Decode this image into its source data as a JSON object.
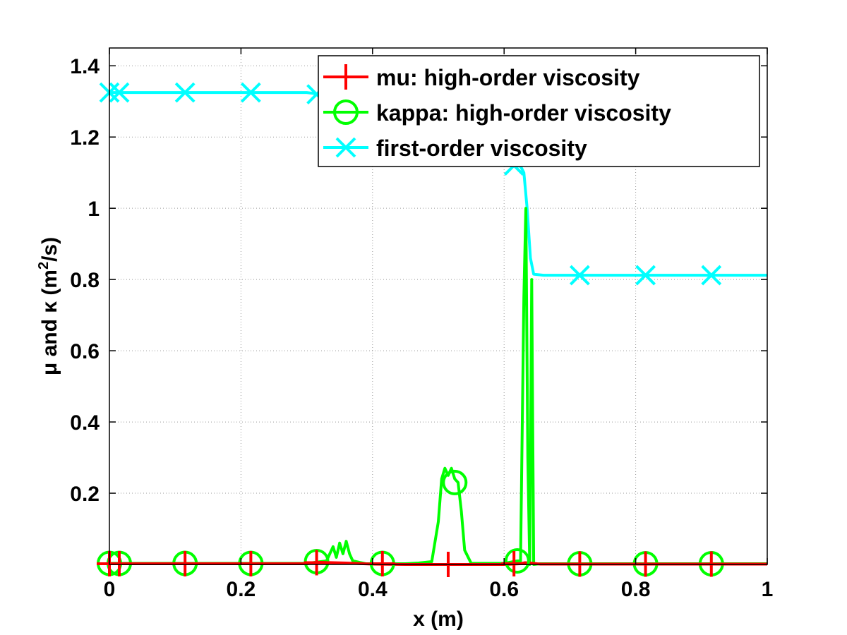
{
  "chart_data": {
    "type": "line",
    "xlabel": "x (m)",
    "ylabel_parts": [
      "μ and κ (m",
      "2",
      "/s)"
    ],
    "xlim": [
      0,
      1
    ],
    "ylim": [
      0,
      1.45
    ],
    "x_ticks": [
      0,
      0.2,
      0.4,
      0.6,
      0.8,
      1
    ],
    "x_tick_labels": [
      "0",
      "0.2",
      "0.4",
      "0.6",
      "0.8",
      "1"
    ],
    "y_ticks": [
      0.2,
      0.4,
      0.6,
      0.8,
      1,
      1.2,
      1.4
    ],
    "y_tick_labels": [
      "0.2",
      "0.4",
      "0.6",
      "0.8",
      "1",
      "1.2",
      "1.4"
    ],
    "grid": true,
    "legend_position": "top-right",
    "series": [
      {
        "name": "mu: high-order viscosity",
        "color": "#ff0000",
        "marker": "plus",
        "points": [
          [
            0,
            0.002
          ],
          [
            0.3,
            0.002
          ],
          [
            0.32,
            0.006
          ],
          [
            0.36,
            0.004
          ],
          [
            0.4,
            0.001
          ],
          [
            0.45,
            0.0
          ],
          [
            0.5,
            0.0
          ],
          [
            0.55,
            0.0
          ],
          [
            0.6,
            0.0
          ],
          [
            0.625,
            0.002
          ],
          [
            0.632,
            0.005
          ],
          [
            0.645,
            0.003
          ],
          [
            0.655,
            0.001
          ],
          [
            1.0,
            0.001
          ]
        ],
        "marker_points": [
          [
            0.0,
            0.002
          ],
          [
            0.015,
            0.002
          ],
          [
            0.115,
            0.002
          ],
          [
            0.215,
            0.002
          ],
          [
            0.315,
            0.005
          ],
          [
            0.415,
            0.002
          ],
          [
            0.515,
            0.0
          ],
          [
            0.615,
            0.002
          ],
          [
            0.715,
            0.001
          ],
          [
            0.815,
            0.001
          ],
          [
            0.915,
            0.001
          ]
        ]
      },
      {
        "name": "kappa: high-order viscosity",
        "color": "#00ff00",
        "marker": "circle",
        "points": [
          [
            0,
            0.003
          ],
          [
            0.3,
            0.003
          ],
          [
            0.33,
            0.01
          ],
          [
            0.34,
            0.05
          ],
          [
            0.345,
            0.02
          ],
          [
            0.35,
            0.06
          ],
          [
            0.355,
            0.03
          ],
          [
            0.36,
            0.065
          ],
          [
            0.365,
            0.03
          ],
          [
            0.37,
            0.01
          ],
          [
            0.39,
            0.002
          ],
          [
            0.45,
            0.002
          ],
          [
            0.47,
            0.004
          ],
          [
            0.49,
            0.008
          ],
          [
            0.5,
            0.12
          ],
          [
            0.505,
            0.24
          ],
          [
            0.51,
            0.27
          ],
          [
            0.515,
            0.25
          ],
          [
            0.52,
            0.27
          ],
          [
            0.525,
            0.24
          ],
          [
            0.53,
            0.23
          ],
          [
            0.535,
            0.15
          ],
          [
            0.54,
            0.04
          ],
          [
            0.55,
            0.003
          ],
          [
            0.6,
            0.003
          ],
          [
            0.62,
            0.01
          ],
          [
            0.625,
            0.01
          ],
          [
            0.63,
            0.75
          ],
          [
            0.633,
            1.0
          ],
          [
            0.636,
            0.3
          ],
          [
            0.639,
            0.0
          ],
          [
            0.642,
            0.8
          ],
          [
            0.645,
            0.0
          ],
          [
            0.655,
            0.002
          ],
          [
            1.0,
            0.002
          ]
        ],
        "marker_points": [
          [
            0.0,
            0.003
          ],
          [
            0.015,
            0.003
          ],
          [
            0.115,
            0.003
          ],
          [
            0.215,
            0.003
          ],
          [
            0.315,
            0.008
          ],
          [
            0.415,
            0.003
          ],
          [
            0.525,
            0.23
          ],
          [
            0.62,
            0.01
          ],
          [
            0.715,
            0.002
          ],
          [
            0.815,
            0.002
          ],
          [
            0.915,
            0.002
          ]
        ]
      },
      {
        "name": "first-order viscosity",
        "color": "#00ffff",
        "marker": "x",
        "points": [
          [
            0,
            1.325
          ],
          [
            0.3,
            1.325
          ],
          [
            0.32,
            1.32
          ],
          [
            0.35,
            1.3
          ],
          [
            0.4,
            1.25
          ],
          [
            0.45,
            1.2
          ],
          [
            0.5,
            1.16
          ],
          [
            0.55,
            1.14
          ],
          [
            0.6,
            1.12
          ],
          [
            0.615,
            1.12
          ],
          [
            0.625,
            1.118
          ],
          [
            0.63,
            1.1
          ],
          [
            0.635,
            1.0
          ],
          [
            0.64,
            0.86
          ],
          [
            0.645,
            0.815
          ],
          [
            0.66,
            0.812
          ],
          [
            1.0,
            0.812
          ]
        ],
        "marker_points": [
          [
            0.0,
            1.325
          ],
          [
            0.015,
            1.325
          ],
          [
            0.115,
            1.325
          ],
          [
            0.215,
            1.325
          ],
          [
            0.315,
            1.32
          ],
          [
            0.415,
            1.24
          ],
          [
            0.515,
            1.15
          ],
          [
            0.615,
            1.12
          ],
          [
            0.715,
            0.812
          ],
          [
            0.815,
            0.812
          ],
          [
            0.915,
            0.812
          ]
        ]
      }
    ]
  }
}
